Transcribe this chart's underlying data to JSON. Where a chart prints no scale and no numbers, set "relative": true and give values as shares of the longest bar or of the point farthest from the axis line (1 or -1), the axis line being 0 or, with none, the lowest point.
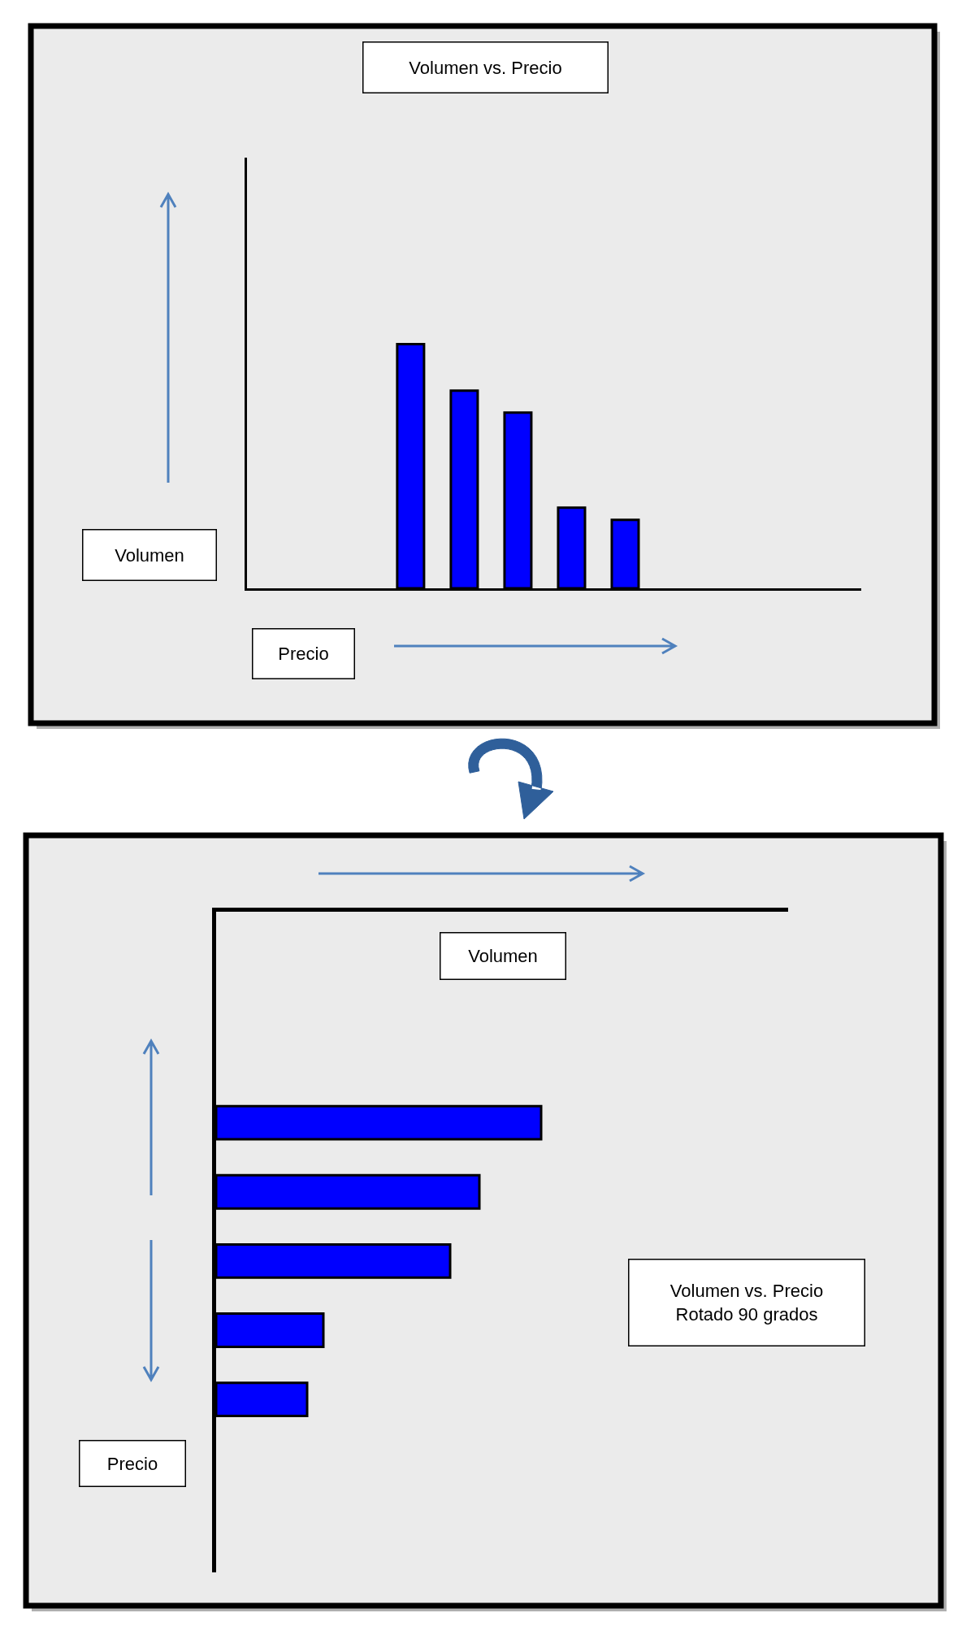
{
  "chart_data": [
    {
      "type": "bar",
      "title": "Volumen vs. Precio",
      "xlabel": "Precio",
      "ylabel": "Volumen",
      "categories": [
        null,
        null,
        null,
        null,
        null
      ],
      "values": [
        1,
        0.81,
        0.72,
        0.33,
        0.28
      ],
      "color": "#0000ff",
      "relative": true
    },
    {
      "type": "bar",
      "orientation": "horizontal",
      "xlabel": "Volumen",
      "ylabel": "Precio",
      "categories": [
        null,
        null,
        null,
        null,
        null
      ],
      "values": [
        1,
        0.81,
        0.72,
        0.33,
        0.28
      ],
      "color": "#0000ff",
      "relative": true,
      "annotations": [
        "Volumen vs. Precio\nRotado 90 grados"
      ]
    }
  ]
}
